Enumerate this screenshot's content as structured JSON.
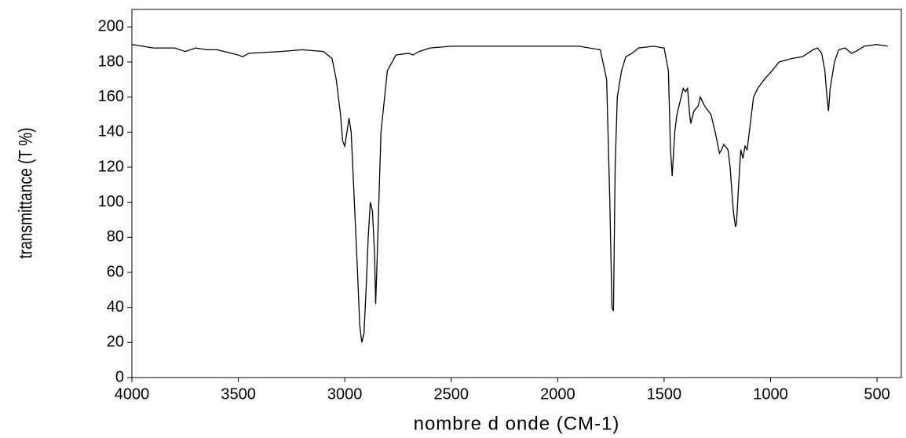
{
  "chart_data": {
    "type": "line",
    "x_label": "nombre d onde (CM-1)",
    "y_label": "transmittance (T %)",
    "x": [
      4000,
      3900,
      3800,
      3750,
      3700,
      3650,
      3600,
      3500,
      3480,
      3450,
      3300,
      3200,
      3100,
      3060,
      3040,
      3020,
      3010,
      3000,
      2990,
      2980,
      2970,
      2955,
      2940,
      2930,
      2920,
      2910,
      2900,
      2890,
      2880,
      2870,
      2860,
      2855,
      2850,
      2830,
      2800,
      2760,
      2700,
      2680,
      2650,
      2600,
      2500,
      2300,
      2100,
      2000,
      1900,
      1800,
      1770,
      1755,
      1745,
      1738,
      1730,
      1720,
      1700,
      1680,
      1650,
      1620,
      1550,
      1500,
      1480,
      1470,
      1462,
      1455,
      1450,
      1440,
      1420,
      1410,
      1400,
      1390,
      1380,
      1375,
      1360,
      1340,
      1330,
      1310,
      1280,
      1260,
      1240,
      1230,
      1220,
      1200,
      1190,
      1175,
      1165,
      1160,
      1150,
      1140,
      1130,
      1120,
      1110,
      1100,
      1080,
      1060,
      1030,
      1000,
      960,
      900,
      850,
      800,
      780,
      760,
      745,
      735,
      728,
      720,
      700,
      680,
      650,
      620,
      600,
      560,
      500,
      450
    ],
    "series": [
      {
        "color": "#000000",
        "values": [
          190,
          188,
          188,
          186,
          188,
          187,
          187,
          184,
          183,
          185,
          186,
          187,
          186,
          182,
          170,
          150,
          135,
          132,
          140,
          148,
          140,
          100,
          60,
          30,
          20,
          25,
          50,
          80,
          100,
          95,
          70,
          42,
          60,
          140,
          175,
          184,
          185,
          184,
          186,
          188,
          189,
          189,
          189,
          189,
          189,
          187,
          170,
          100,
          40,
          38,
          120,
          160,
          175,
          183,
          185,
          188,
          189,
          188,
          175,
          130,
          115,
          130,
          140,
          150,
          160,
          165,
          163,
          165,
          150,
          145,
          152,
          155,
          160,
          155,
          150,
          140,
          128,
          130,
          133,
          130,
          120,
          95,
          86,
          88,
          110,
          130,
          125,
          132,
          130,
          140,
          160,
          165,
          170,
          174,
          180,
          182,
          183,
          187,
          188,
          185,
          175,
          160,
          152,
          165,
          180,
          187,
          188,
          185,
          186,
          189,
          190,
          189
        ]
      }
    ],
    "xlim": [
      4000,
      386
    ],
    "ylim": [
      0,
      210
    ],
    "xticks": [
      4000,
      3500,
      3000,
      2500,
      2000,
      1500,
      1000,
      500
    ],
    "yticks": [
      0,
      20,
      40,
      60,
      80,
      100,
      120,
      140,
      160,
      180,
      200
    ]
  }
}
